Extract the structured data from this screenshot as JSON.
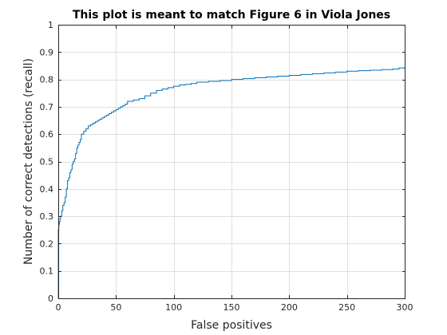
{
  "chart_data": {
    "type": "line",
    "title": "This plot is meant to match Figure 6 in Viola Jones",
    "xlabel": "False positives",
    "ylabel": "Number of correct detections (recall)",
    "xlim": [
      0,
      300
    ],
    "ylim": [
      0,
      1
    ],
    "xticks": [
      0,
      50,
      100,
      150,
      200,
      250,
      300
    ],
    "yticks": [
      0,
      0.1,
      0.2,
      0.3,
      0.4,
      0.5,
      0.6,
      0.7,
      0.8,
      0.9,
      1
    ],
    "xtick_labels": [
      "0",
      "50",
      "100",
      "150",
      "200",
      "250",
      "300"
    ],
    "ytick_labels": [
      "0",
      "0.1",
      "0.2",
      "0.3",
      "0.4",
      "0.5",
      "0.6",
      "0.7",
      "0.8",
      "0.9",
      "1"
    ],
    "grid": true,
    "line_style": "step",
    "line_color": "#0072BD",
    "series": [
      {
        "x": [
          0,
          0,
          0.5,
          1,
          1.5,
          2,
          3,
          4,
          5,
          6,
          7,
          8,
          9,
          10,
          11,
          12,
          13,
          14,
          15,
          16,
          17,
          18,
          19,
          20,
          22,
          24,
          26,
          28,
          30,
          32,
          34,
          36,
          38,
          40,
          42,
          44,
          46,
          48,
          50,
          52,
          54,
          56,
          58,
          60,
          65,
          70,
          75,
          80,
          85,
          90,
          95,
          100,
          105,
          110,
          115,
          120,
          130,
          140,
          150,
          160,
          170,
          180,
          190,
          200,
          210,
          220,
          230,
          240,
          250,
          260,
          270,
          280,
          290,
          295,
          300
        ],
        "y": [
          0,
          0.25,
          0.27,
          0.28,
          0.29,
          0.3,
          0.32,
          0.34,
          0.35,
          0.37,
          0.4,
          0.43,
          0.44,
          0.46,
          0.47,
          0.49,
          0.5,
          0.51,
          0.53,
          0.55,
          0.56,
          0.57,
          0.58,
          0.6,
          0.61,
          0.62,
          0.63,
          0.635,
          0.64,
          0.645,
          0.65,
          0.655,
          0.66,
          0.665,
          0.67,
          0.675,
          0.68,
          0.685,
          0.69,
          0.695,
          0.7,
          0.705,
          0.71,
          0.72,
          0.725,
          0.73,
          0.74,
          0.75,
          0.76,
          0.765,
          0.77,
          0.775,
          0.78,
          0.782,
          0.785,
          0.79,
          0.793,
          0.796,
          0.8,
          0.803,
          0.806,
          0.809,
          0.812,
          0.815,
          0.818,
          0.821,
          0.824,
          0.827,
          0.83,
          0.832,
          0.834,
          0.836,
          0.838,
          0.842,
          0.845
        ]
      }
    ]
  }
}
